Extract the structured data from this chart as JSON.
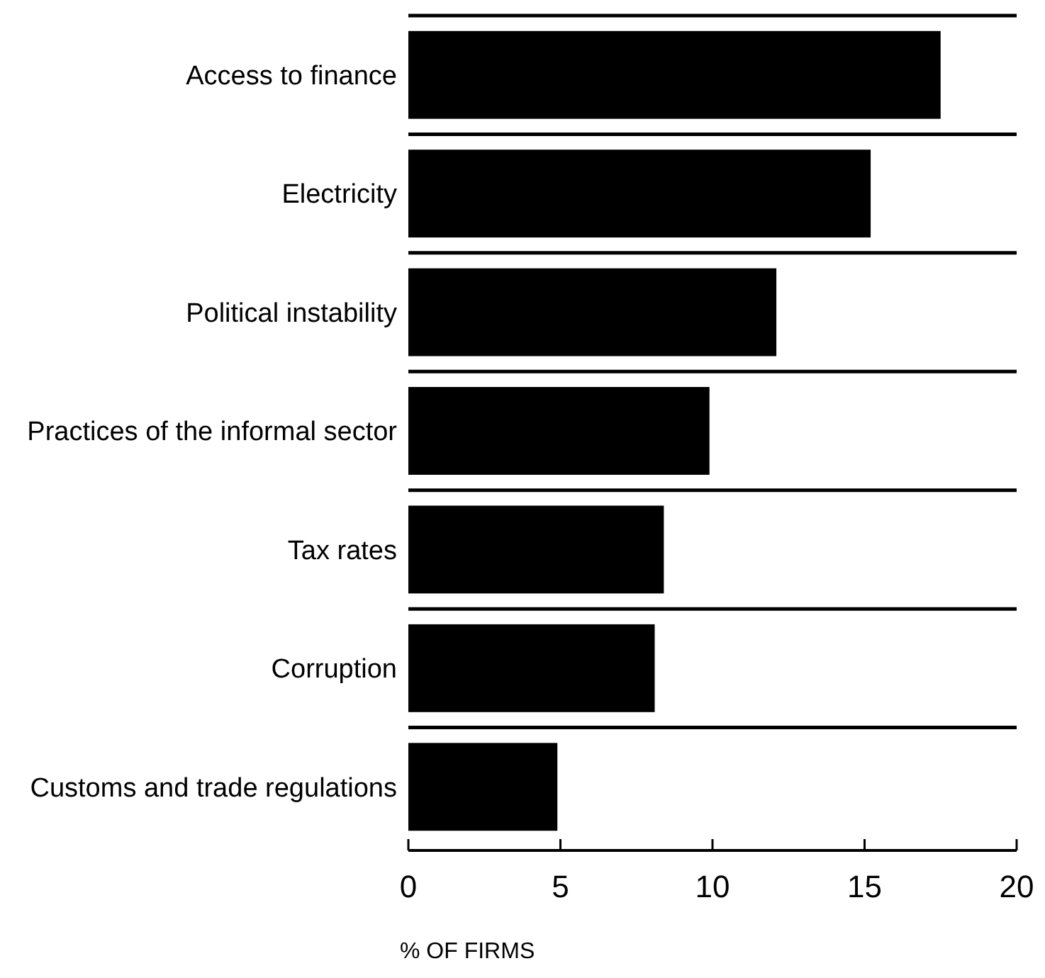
{
  "chart_data": {
    "type": "bar",
    "orientation": "horizontal",
    "xlabel": "% OF FIRMS",
    "categories": [
      "Access to finance",
      "Electricity",
      "Political instability",
      "Practices of the informal sector",
      "Tax rates",
      "Corruption",
      "Customs and trade regulations"
    ],
    "values": [
      17.5,
      15.2,
      12.1,
      9.9,
      8.4,
      8.1,
      4.9
    ],
    "color": "#000000",
    "xlim": [
      0,
      20
    ],
    "xticks": [
      0,
      5,
      10,
      15,
      20
    ],
    "grid": "y"
  }
}
